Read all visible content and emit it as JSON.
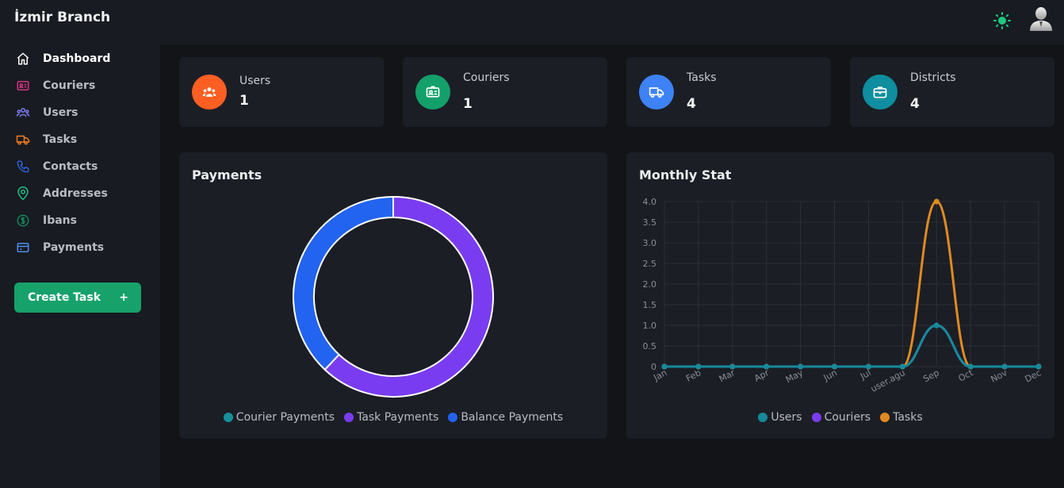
{
  "app": {
    "branch_name": "İzmir Branch"
  },
  "sidebar": {
    "items": [
      {
        "label": "Dashboard",
        "icon": "home-icon",
        "color": "#ffffff"
      },
      {
        "label": "Couriers",
        "icon": "id-card-icon",
        "color": "#d63384"
      },
      {
        "label": "Users",
        "icon": "users-icon",
        "color": "#7c7cf0"
      },
      {
        "label": "Tasks",
        "icon": "truck-icon",
        "color": "#f07c1e"
      },
      {
        "label": "Contacts",
        "icon": "phone-icon",
        "color": "#2f62d6"
      },
      {
        "label": "Addresses",
        "icon": "map-pin-icon",
        "color": "#1fbf86"
      },
      {
        "label": "Ibans",
        "icon": "dollar-icon",
        "color": "#14845a"
      },
      {
        "label": "Payments",
        "icon": "credit-card-icon",
        "color": "#4d8fe8"
      }
    ],
    "create_task": {
      "label": "Create Task",
      "plus": "+"
    }
  },
  "header": {
    "theme_icon": "sun-icon",
    "avatar_icon": "user-avatar-icon"
  },
  "stats": [
    {
      "label": "Users",
      "value": "1",
      "color": "#fd5f22",
      "icon": "users-icon"
    },
    {
      "label": "Couriers",
      "value": "1",
      "color": "#14a06b",
      "icon": "id-card-icon"
    },
    {
      "label": "Tasks",
      "value": "4",
      "color": "#3d82f6",
      "icon": "truck-icon"
    },
    {
      "label": "Districts",
      "value": "4",
      "color": "#0e8e9e",
      "icon": "briefcase-icon"
    }
  ],
  "payments_panel": {
    "title": "Payments",
    "legend": [
      {
        "name": "Courier Payments",
        "color": "#16909a"
      },
      {
        "name": "Task Payments",
        "color": "#7a3cf0"
      },
      {
        "name": "Balance Payments",
        "color": "#2264f0"
      }
    ]
  },
  "monthly_panel": {
    "title": "Monthly Stat"
  },
  "chart_data": [
    {
      "type": "pie",
      "title": "Payments",
      "categories": [
        "Courier Payments",
        "Task Payments",
        "Balance Payments"
      ],
      "values": [
        0,
        62,
        38
      ],
      "colors": [
        "#16909a",
        "#7a3cf0",
        "#2264f0"
      ],
      "legend": "bottom"
    },
    {
      "type": "line",
      "title": "Monthly Stat",
      "x": [
        "Jan",
        "Feb",
        "Mar",
        "Apr",
        "May",
        "Jun",
        "Jul",
        "user.agu",
        "Sep",
        "Oct",
        "Nov",
        "Dec"
      ],
      "yticks": [
        "0",
        "0.5",
        "1.0",
        "1.5",
        "2.0",
        "2.5",
        "3.0",
        "3.5",
        "4.0"
      ],
      "ylim": [
        0,
        4
      ],
      "grid": true,
      "legend": "bottom",
      "series": [
        {
          "name": "Users",
          "color": "#178a9a",
          "values": [
            0,
            0,
            0,
            0,
            0,
            0,
            0,
            0,
            1,
            0,
            0,
            0
          ]
        },
        {
          "name": "Couriers",
          "color": "#7a3cf0",
          "values": [
            0,
            0,
            0,
            0,
            0,
            0,
            0,
            0,
            1,
            0,
            0,
            0
          ]
        },
        {
          "name": "Tasks",
          "color": "#e08a22",
          "values": [
            0,
            0,
            0,
            0,
            0,
            0,
            0,
            0,
            4,
            0,
            0,
            0
          ]
        }
      ]
    }
  ]
}
